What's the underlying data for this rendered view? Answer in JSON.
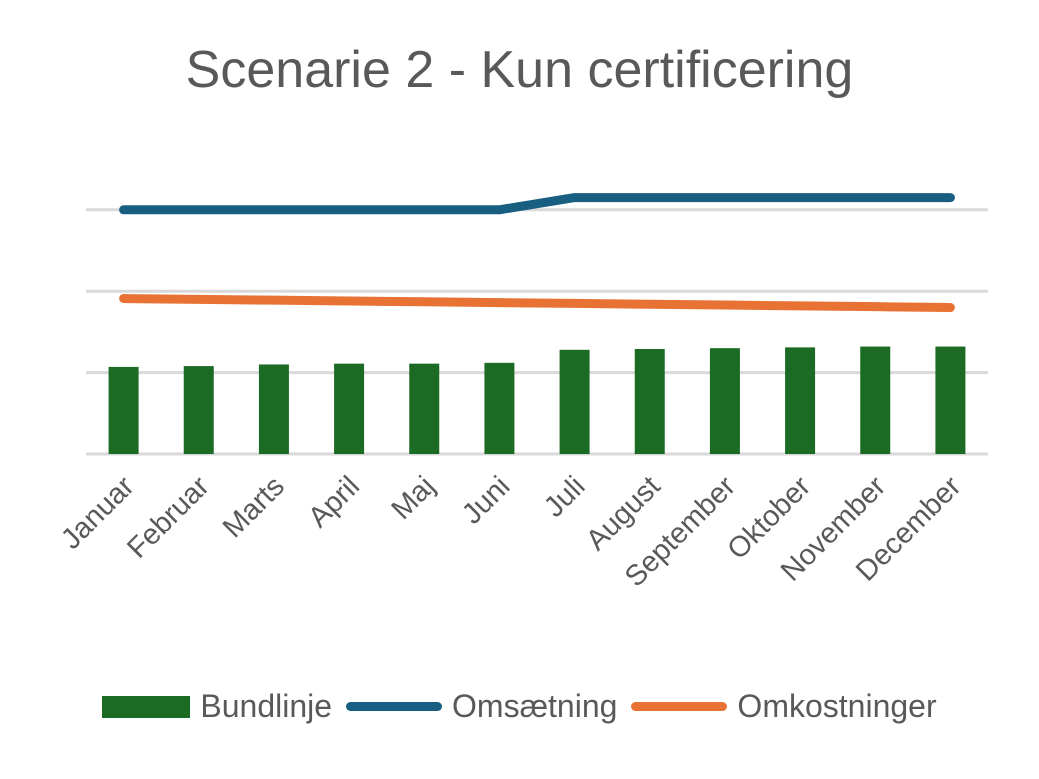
{
  "chart_data": {
    "type": "bar+line",
    "title": "Scenarie 2 - Kun certificering",
    "xlabel": "",
    "ylabel": "",
    "categories": [
      "Januar",
      "Februar",
      "Marts",
      "April",
      "Maj",
      "Juni",
      "Juli",
      "August",
      "September",
      "Oktober",
      "November",
      "December"
    ],
    "series": [
      {
        "name": "Bundlinje",
        "type": "bar",
        "color": "#1b6b24",
        "values": [
          1.07,
          1.08,
          1.1,
          1.11,
          1.11,
          1.12,
          1.28,
          1.29,
          1.3,
          1.31,
          1.32,
          1.32
        ]
      },
      {
        "name": "Omsætning",
        "type": "line",
        "color": "#175e80",
        "values": [
          3.0,
          3.0,
          3.0,
          3.0,
          3.0,
          3.0,
          3.15,
          3.15,
          3.15,
          3.15,
          3.15,
          3.15
        ]
      },
      {
        "name": "Omkostninger",
        "type": "line",
        "color": "#e87234",
        "values": [
          1.91,
          1.9,
          1.89,
          1.88,
          1.87,
          1.86,
          1.85,
          1.84,
          1.83,
          1.82,
          1.81,
          1.8
        ]
      }
    ],
    "ylim": [
      0,
      3.3
    ],
    "y_ticks_labeled": false,
    "gridlines": [
      0,
      1,
      2,
      3
    ],
    "grid": true,
    "legend_position": "bottom"
  }
}
